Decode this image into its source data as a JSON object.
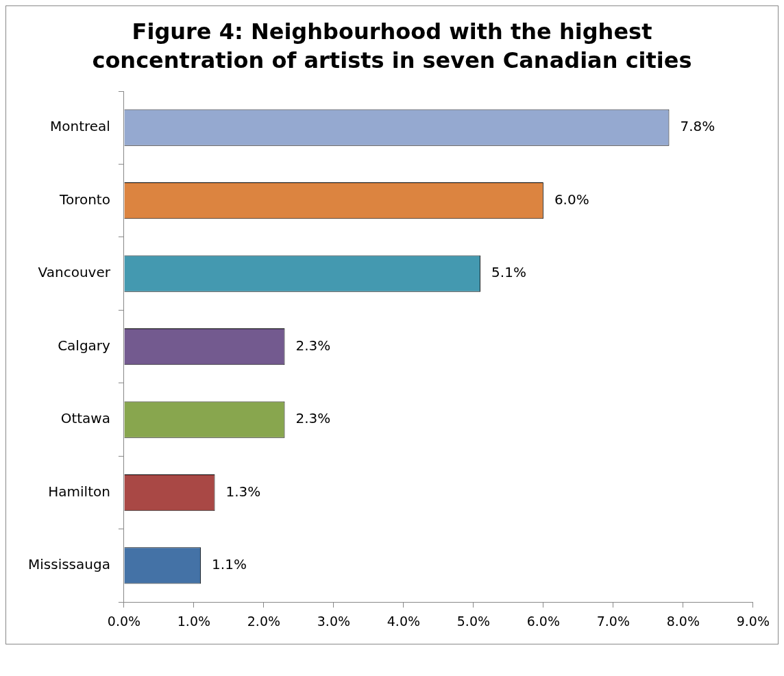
{
  "chart_data": {
    "type": "bar",
    "orientation": "horizontal",
    "title": "Figure 4: Neighbourhood with the highest concentration of artists in seven Canadian cities",
    "categories": [
      "Montreal",
      "Toronto",
      "Vancouver",
      "Calgary",
      "Ottawa",
      "Hamilton",
      "Mississauga"
    ],
    "values": [
      7.8,
      6.0,
      5.1,
      2.3,
      2.3,
      1.3,
      1.1
    ],
    "colors": [
      "#95a9d0",
      "#dc8440",
      "#4499b0",
      "#735a8f",
      "#88a64e",
      "#a94845",
      "#4472a6"
    ],
    "value_labels": [
      "7.8%",
      "6.0%",
      "5.1%",
      "2.3%",
      "2.3%",
      "1.3%",
      "1.1%"
    ],
    "xlim": [
      0,
      9
    ],
    "xticks": [
      {
        "value": 0,
        "label": "0.0%"
      },
      {
        "value": 1,
        "label": "1.0%"
      },
      {
        "value": 2,
        "label": "2.0%"
      },
      {
        "value": 3,
        "label": "3.0%"
      },
      {
        "value": 4,
        "label": "4.0%"
      },
      {
        "value": 5,
        "label": "5.0%"
      },
      {
        "value": 6,
        "label": "6.0%"
      },
      {
        "value": 7,
        "label": "7.0%"
      },
      {
        "value": 8,
        "label": "8.0%"
      },
      {
        "value": 9,
        "label": "9.0%"
      }
    ],
    "grid": false,
    "legend": false
  }
}
